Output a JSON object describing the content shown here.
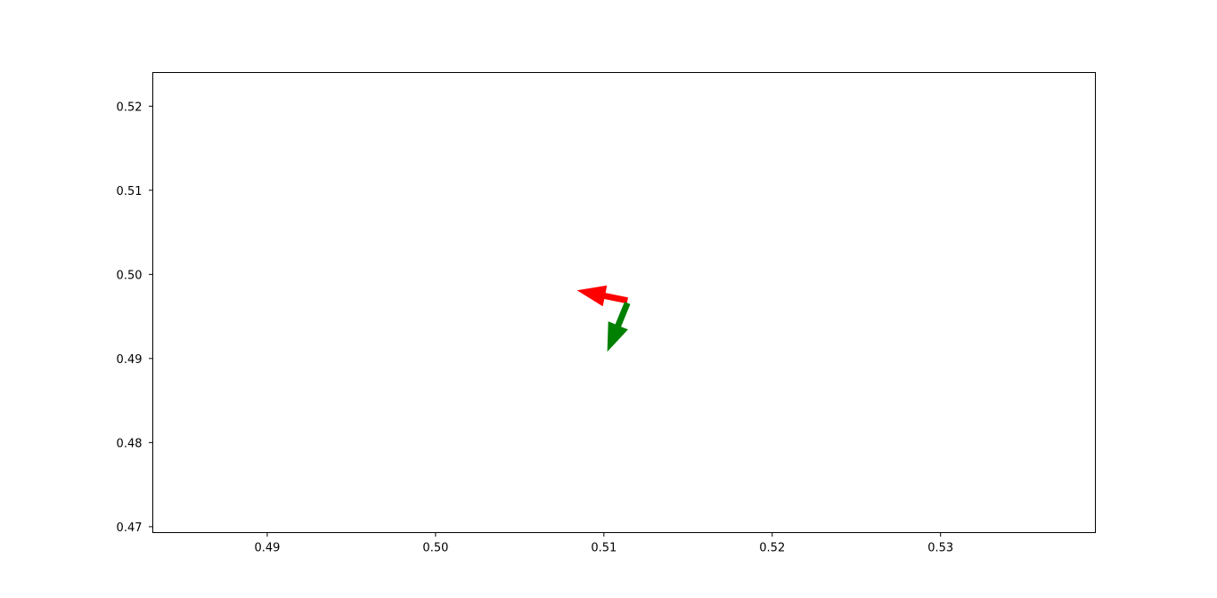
{
  "chart_data": {
    "type": "quiver",
    "title": "",
    "xlabel": "",
    "ylabel": "",
    "xlim": [
      0.4832,
      0.5392
    ],
    "ylim": [
      0.4693,
      0.524
    ],
    "xticks": [
      0.49,
      0.5,
      0.51,
      0.52,
      0.53
    ],
    "xtick_labels": [
      "0.49",
      "0.50",
      "0.51",
      "0.52",
      "0.53"
    ],
    "yticks": [
      0.47,
      0.48,
      0.49,
      0.5,
      0.51,
      0.52
    ],
    "ytick_labels": [
      "0.47",
      "0.48",
      "0.49",
      "0.50",
      "0.51",
      "0.52"
    ],
    "grid": false,
    "arrows": [
      {
        "x": 0.5114,
        "y": 0.4969,
        "dx": -0.003,
        "dy": 0.0012,
        "color": "#ff0000"
      },
      {
        "x": 0.5114,
        "y": 0.4966,
        "dx": -0.0012,
        "dy": -0.0058,
        "color": "#008000"
      }
    ]
  }
}
